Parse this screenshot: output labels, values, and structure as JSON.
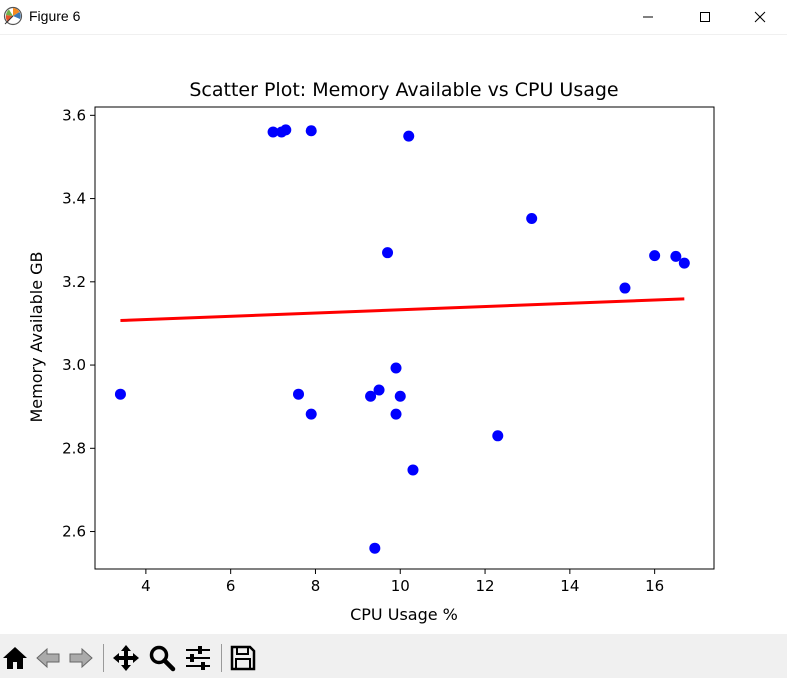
{
  "window": {
    "title": "Figure 6",
    "controls": [
      "minimize-icon",
      "maximize-icon",
      "close-icon"
    ]
  },
  "toolbar": {
    "buttons": [
      "home-icon",
      "back-icon",
      "forward-icon",
      "pan-icon",
      "zoom-icon",
      "configure-subplots-icon",
      "save-icon"
    ]
  },
  "colors": {
    "points": "#0000ff",
    "fit_line": "#ff0000",
    "toolbar_bg": "#f0f0f0"
  },
  "chart_data": {
    "type": "scatter",
    "title": "Scatter Plot: Memory Available vs CPU Usage",
    "xlabel": "CPU Usage %",
    "ylabel": "Memory Available GB",
    "xlim": [
      2.8,
      17.4
    ],
    "ylim": [
      2.51,
      3.62
    ],
    "xticks": [
      4,
      6,
      8,
      10,
      12,
      14,
      16
    ],
    "yticks": [
      2.6,
      2.8,
      3.0,
      3.2,
      3.4,
      3.6
    ],
    "xtick_labels": [
      "4",
      "6",
      "8",
      "10",
      "12",
      "14",
      "16"
    ],
    "ytick_labels": [
      "2.6",
      "2.8",
      "3.0",
      "3.2",
      "3.4",
      "3.6"
    ],
    "grid": false,
    "points": [
      {
        "x": 3.4,
        "y": 2.93
      },
      {
        "x": 7.0,
        "y": 3.56
      },
      {
        "x": 7.2,
        "y": 3.56
      },
      {
        "x": 7.3,
        "y": 3.565
      },
      {
        "x": 7.9,
        "y": 3.563
      },
      {
        "x": 10.2,
        "y": 3.55
      },
      {
        "x": 13.1,
        "y": 3.352
      },
      {
        "x": 9.7,
        "y": 3.27
      },
      {
        "x": 16.0,
        "y": 3.263
      },
      {
        "x": 16.5,
        "y": 3.261
      },
      {
        "x": 16.7,
        "y": 3.245
      },
      {
        "x": 15.3,
        "y": 3.185
      },
      {
        "x": 9.9,
        "y": 2.993
      },
      {
        "x": 7.6,
        "y": 2.93
      },
      {
        "x": 9.3,
        "y": 2.925
      },
      {
        "x": 9.5,
        "y": 2.94
      },
      {
        "x": 10.0,
        "y": 2.925
      },
      {
        "x": 7.9,
        "y": 2.882
      },
      {
        "x": 9.9,
        "y": 2.882
      },
      {
        "x": 12.3,
        "y": 2.83
      },
      {
        "x": 10.3,
        "y": 2.748
      },
      {
        "x": 9.4,
        "y": 2.56
      }
    ],
    "fit_line": {
      "x": [
        3.4,
        16.7
      ],
      "y": [
        3.107,
        3.159
      ]
    }
  }
}
